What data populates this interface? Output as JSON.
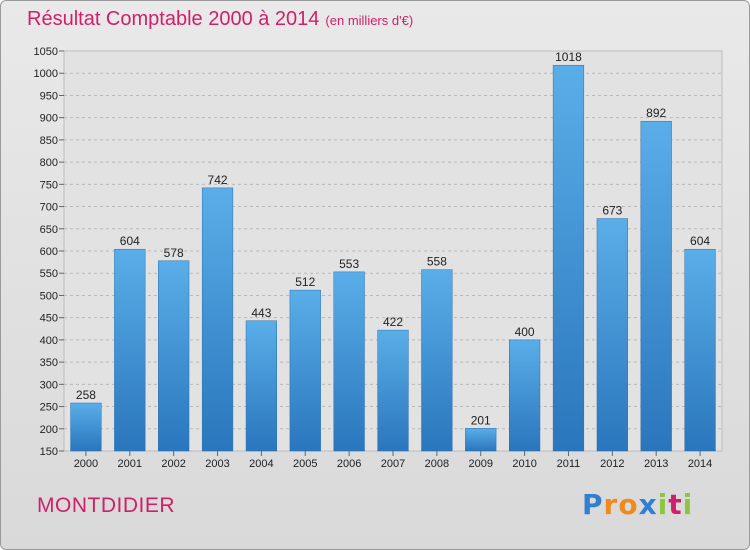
{
  "chart_data": {
    "type": "bar",
    "title": "Résultat Comptable 2000 à 2014",
    "subtitle": "(en milliers d'€)",
    "categories": [
      "2000",
      "2001",
      "2002",
      "2003",
      "2004",
      "2005",
      "2006",
      "2007",
      "2008",
      "2009",
      "2010",
      "2011",
      "2012",
      "2013",
      "2014"
    ],
    "values": [
      258,
      604,
      578,
      742,
      443,
      512,
      553,
      422,
      558,
      201,
      400,
      1018,
      673,
      892,
      604
    ],
    "ylim": [
      150,
      1050
    ],
    "yticks": [
      150,
      200,
      250,
      300,
      350,
      400,
      450,
      500,
      550,
      600,
      650,
      700,
      750,
      800,
      850,
      900,
      950,
      1000,
      1050
    ],
    "grid": true,
    "bar_color": "#3d8fd8"
  },
  "commune": "MONTDIDIER",
  "logo": {
    "letters": [
      "P",
      "r",
      "o",
      "x",
      "i",
      "t",
      "i"
    ],
    "colors": [
      "#2f7fd3",
      "#f08a1c",
      "#f08a1c",
      "#2f7fd3",
      "#8cc63f",
      "#d01f6a",
      "#8cc63f"
    ]
  }
}
